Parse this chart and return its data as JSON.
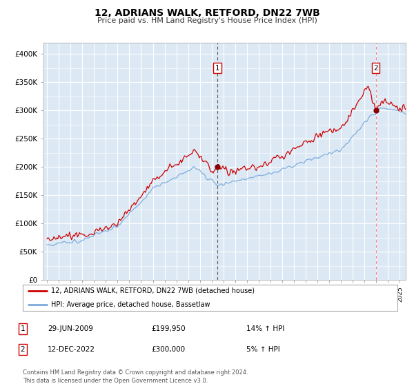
{
  "title": "12, ADRIANS WALK, RETFORD, DN22 7WB",
  "subtitle": "Price paid vs. HM Land Registry's House Price Index (HPI)",
  "plot_bg_color": "#dce9f5",
  "grid_color": "#ffffff",
  "line1_color": "#cc0000",
  "line2_color": "#7aabdb",
  "annotation1": {
    "label": "1",
    "date_x": 2009.49,
    "y": 199950
  },
  "annotation2": {
    "label": "2",
    "date_x": 2022.95,
    "y": 300000
  },
  "legend_line1": "12, ADRIANS WALK, RETFORD, DN22 7WB (detached house)",
  "legend_line2": "HPI: Average price, detached house, Bassetlaw",
  "table_rows": [
    {
      "num": "1",
      "date": "29-JUN-2009",
      "price": "£199,950",
      "change": "14% ↑ HPI"
    },
    {
      "num": "2",
      "date": "12-DEC-2022",
      "price": "£300,000",
      "change": "5% ↑ HPI"
    }
  ],
  "footnote": "Contains HM Land Registry data © Crown copyright and database right 2024.\nThis data is licensed under the Open Government Licence v3.0.",
  "ylim": [
    0,
    420000
  ],
  "yticks": [
    0,
    50000,
    100000,
    150000,
    200000,
    250000,
    300000,
    350000,
    400000
  ],
  "xlim_start": 1994.7,
  "xlim_end": 2025.5
}
